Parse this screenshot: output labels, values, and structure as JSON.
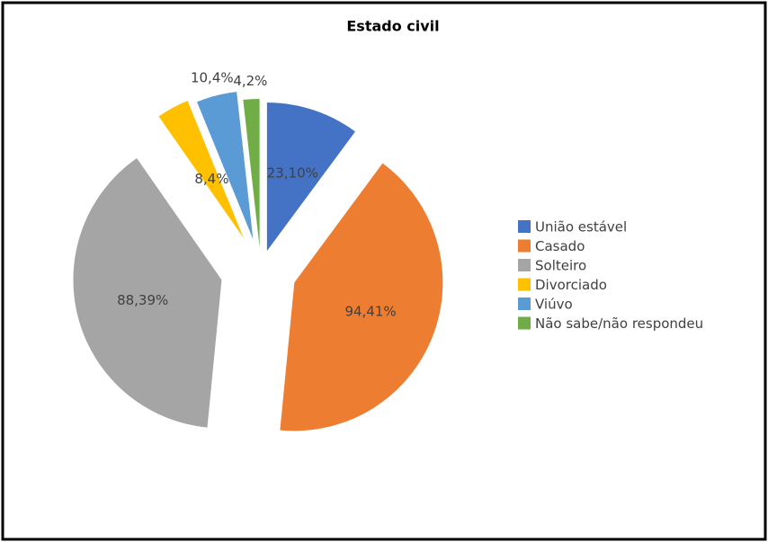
{
  "chart_data": {
    "type": "pie",
    "title": "Estado civil",
    "categories": [
      "União estável",
      "Casado",
      "Solteiro",
      "Divorciado",
      "Viúvo",
      "Não sabe/não respondeu"
    ],
    "values": [
      23,
      94,
      88,
      8,
      10,
      4
    ],
    "value_labels": [
      "23,10%",
      "94,41%",
      "88,39%",
      "8,4%",
      "10,4%",
      "4,2%"
    ],
    "colors": [
      "#4472c4",
      "#ed7d31",
      "#a5a5a5",
      "#ffc000",
      "#5b9bd5",
      "#70ad47"
    ],
    "legend": "right"
  }
}
